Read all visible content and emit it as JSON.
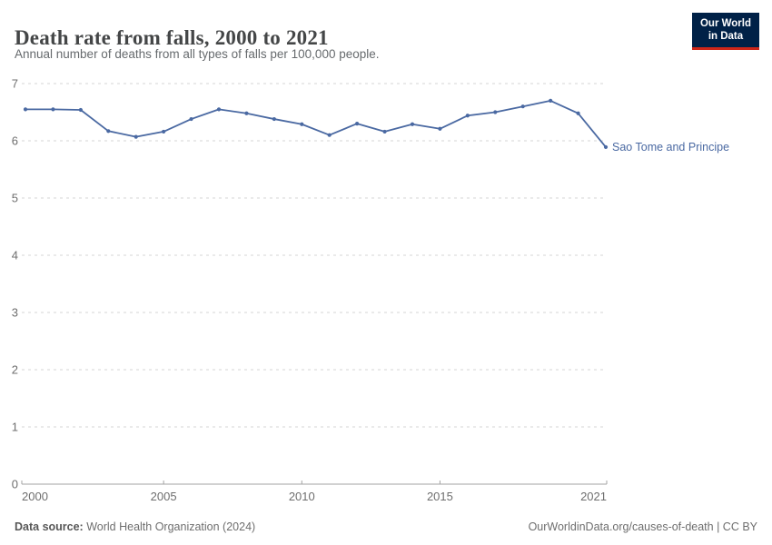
{
  "header": {
    "title": "Death rate from falls, 2000 to 2021",
    "subtitle": "Annual number of deaths from all types of falls per 100,000 people."
  },
  "logo": {
    "line1": "Our World",
    "line2": "in Data",
    "bg_color": "#002147",
    "accent_color": "#CE2619"
  },
  "footer": {
    "source_label": "Data source:",
    "source_value": " World Health Organization (2024)",
    "right_text": "OurWorldinData.org/causes-of-death | CC BY"
  },
  "chart_data": {
    "type": "line",
    "title": "Death rate from falls, 2000 to 2021",
    "xlabel": "",
    "ylabel": "",
    "x": [
      2000,
      2001,
      2002,
      2003,
      2004,
      2005,
      2006,
      2007,
      2008,
      2009,
      2010,
      2011,
      2012,
      2013,
      2014,
      2015,
      2016,
      2017,
      2018,
      2019,
      2020,
      2021
    ],
    "series": [
      {
        "name": "Sao Tome and Principe",
        "color": "#4a69a2",
        "values": [
          6.55,
          6.55,
          6.54,
          6.17,
          6.07,
          6.16,
          6.38,
          6.55,
          6.48,
          6.38,
          6.29,
          6.1,
          6.3,
          6.16,
          6.29,
          6.21,
          6.44,
          6.5,
          6.6,
          6.7,
          6.48,
          5.89
        ]
      }
    ],
    "xlim": [
      2000,
      2021
    ],
    "ylim": [
      0,
      7
    ],
    "yticks": [
      0,
      1,
      2,
      3,
      4,
      5,
      6,
      7
    ],
    "xticks": [
      2000,
      2005,
      2010,
      2015,
      2021
    ],
    "grid": "horizontal-dashed",
    "legend": "end-of-line-label"
  }
}
